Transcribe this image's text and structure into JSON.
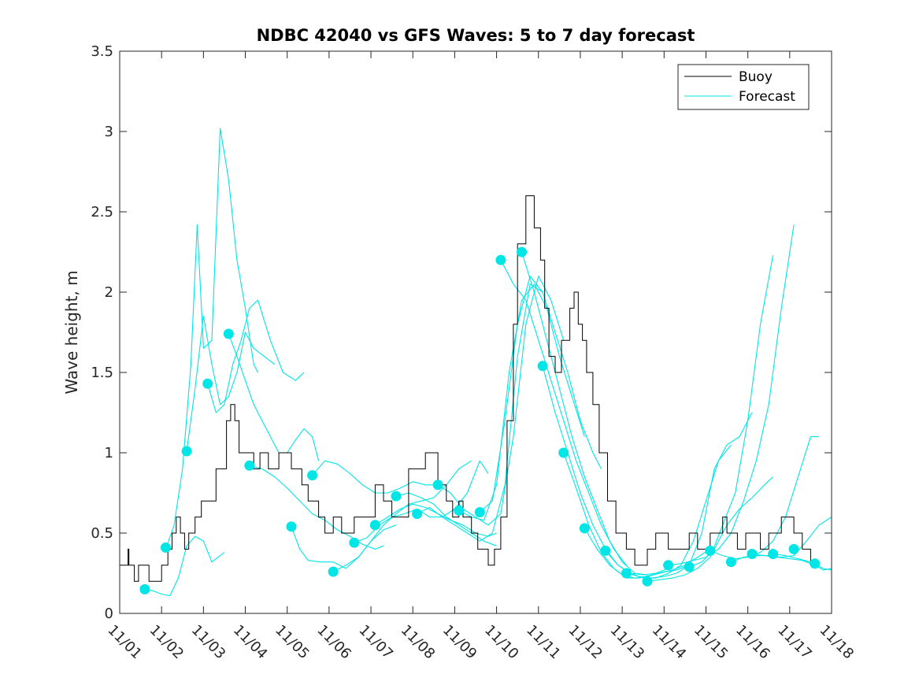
{
  "chart_data": {
    "type": "line",
    "title": "NDBC 42040 vs GFS Waves: 5 to 7 day forecast",
    "xlabel": "",
    "ylabel": "Wave height, m",
    "xlim": [
      0,
      17
    ],
    "ylim": [
      0,
      3.5
    ],
    "yticks": [
      0,
      0.5,
      1,
      1.5,
      2,
      2.5,
      3,
      3.5
    ],
    "ytick_labels": [
      "0",
      "0.5",
      "1",
      "1.5",
      "2",
      "2.5",
      "3",
      "3.5"
    ],
    "xtick_labels": [
      "11/01",
      "11/02",
      "11/03",
      "11/04",
      "11/05",
      "11/06",
      "11/07",
      "11/08",
      "11/09",
      "11/10",
      "11/11",
      "11/12",
      "11/13",
      "11/14",
      "11/15",
      "11/16",
      "11/17",
      "11/18"
    ],
    "grid": false,
    "legend": {
      "location": "top-right",
      "entries": [
        "Buoy",
        "Forecast"
      ]
    },
    "colors": {
      "buoy": "#000000",
      "forecast": "#00e5e5",
      "axes": "#262626"
    },
    "buoy": {
      "name": "Buoy",
      "x": [
        0,
        0.2,
        0.2,
        0.22,
        0.22,
        0.35,
        0.35,
        0.45,
        0.45,
        0.7,
        0.7,
        1.0,
        1.0,
        1.15,
        1.15,
        1.25,
        1.25,
        1.35,
        1.35,
        1.45,
        1.45,
        1.55,
        1.55,
        1.65,
        1.65,
        1.8,
        1.8,
        1.95,
        1.95,
        2.3,
        2.3,
        2.55,
        2.55,
        2.65,
        2.65,
        2.75,
        2.75,
        2.85,
        2.85,
        3.2,
        3.2,
        3.35,
        3.35,
        3.55,
        3.55,
        3.8,
        3.8,
        4.1,
        4.1,
        4.35,
        4.35,
        4.5,
        4.5,
        4.75,
        4.75,
        4.9,
        4.9,
        5.1,
        5.1,
        5.3,
        5.3,
        5.6,
        5.6,
        6.1,
        6.1,
        6.3,
        6.3,
        6.5,
        6.5,
        6.9,
        6.9,
        7.3,
        7.3,
        7.6,
        7.6,
        7.8,
        7.8,
        7.95,
        7.95,
        8.1,
        8.1,
        8.2,
        8.2,
        8.4,
        8.4,
        8.55,
        8.55,
        8.8,
        8.8,
        8.95,
        8.95,
        9.1,
        9.1,
        9.25,
        9.25,
        9.4,
        9.4,
        9.5,
        9.5,
        9.7,
        9.7,
        9.9,
        9.9,
        10.05,
        10.05,
        10.15,
        10.15,
        10.25,
        10.25,
        10.4,
        10.4,
        10.55,
        10.55,
        10.75,
        10.75,
        10.85,
        10.85,
        10.95,
        10.95,
        11.05,
        11.05,
        11.15,
        11.15,
        11.3,
        11.3,
        11.45,
        11.45,
        11.65,
        11.65,
        11.85,
        11.85,
        12.1,
        12.1,
        12.3,
        12.3,
        12.6,
        12.6,
        12.8,
        12.8,
        13.1,
        13.1,
        13.6,
        13.6,
        13.8,
        13.8,
        14.1,
        14.1,
        14.4,
        14.4,
        14.5,
        14.5,
        14.75,
        14.75,
        14.95,
        14.95,
        15.3,
        15.3,
        15.5,
        15.5,
        15.8,
        15.8,
        16.1,
        16.1,
        16.3,
        16.3,
        16.5,
        16.5,
        16.7
      ],
      "y": [
        0.3,
        0.3,
        0.4,
        0.4,
        0.3,
        0.3,
        0.2,
        0.2,
        0.3,
        0.3,
        0.2,
        0.2,
        0.3,
        0.3,
        0.4,
        0.4,
        0.5,
        0.5,
        0.6,
        0.6,
        0.5,
        0.5,
        0.4,
        0.4,
        0.5,
        0.5,
        0.6,
        0.6,
        0.7,
        0.7,
        0.9,
        0.9,
        1.2,
        1.2,
        1.3,
        1.3,
        1.2,
        1.2,
        1.0,
        1.0,
        0.9,
        0.9,
        1.0,
        1.0,
        0.9,
        0.9,
        1.0,
        1.0,
        0.9,
        0.9,
        0.8,
        0.8,
        0.7,
        0.7,
        0.6,
        0.6,
        0.5,
        0.5,
        0.6,
        0.6,
        0.5,
        0.5,
        0.6,
        0.6,
        0.8,
        0.8,
        0.7,
        0.7,
        0.6,
        0.6,
        0.9,
        0.9,
        1.0,
        1.0,
        0.8,
        0.8,
        0.7,
        0.7,
        0.6,
        0.6,
        0.7,
        0.7,
        0.6,
        0.6,
        0.5,
        0.5,
        0.4,
        0.4,
        0.3,
        0.3,
        0.4,
        0.4,
        0.6,
        0.6,
        1.2,
        1.2,
        1.8,
        1.8,
        2.3,
        2.3,
        2.6,
        2.6,
        2.4,
        2.4,
        2.2,
        2.2,
        1.9,
        1.9,
        1.6,
        1.6,
        1.5,
        1.5,
        1.7,
        1.7,
        1.9,
        1.9,
        2.0,
        2.0,
        1.8,
        1.8,
        1.7,
        1.7,
        1.5,
        1.5,
        1.3,
        1.3,
        1.0,
        1.0,
        0.7,
        0.7,
        0.5,
        0.5,
        0.4,
        0.4,
        0.3,
        0.3,
        0.4,
        0.4,
        0.5,
        0.5,
        0.4,
        0.4,
        0.5,
        0.5,
        0.4,
        0.4,
        0.5,
        0.5,
        0.6,
        0.6,
        0.5,
        0.5,
        0.4,
        0.4,
        0.5,
        0.5,
        0.4,
        0.4,
        0.5,
        0.5,
        0.6,
        0.6,
        0.5,
        0.5,
        0.4,
        0.4,
        0.3,
        0.3
      ]
    },
    "forecast_series": [
      {
        "name": "Forecast",
        "x": [
          0.6,
          0.8,
          1.0,
          1.2,
          1.4,
          1.6,
          1.8,
          2.0,
          2.2,
          2.5
        ],
        "y": [
          0.15,
          0.14,
          0.12,
          0.11,
          0.22,
          0.42,
          0.48,
          0.45,
          0.32,
          0.38
        ]
      },
      {
        "name": "Forecast",
        "x": [
          1.1,
          1.3,
          1.5,
          1.7,
          1.85,
          2.0,
          2.2,
          2.4,
          2.6,
          2.8,
          3.0,
          3.2,
          3.3
        ],
        "y": [
          0.4,
          0.55,
          0.9,
          1.55,
          2.42,
          1.65,
          1.7,
          3.02,
          2.7,
          2.2,
          1.9,
          1.55,
          1.5
        ]
      },
      {
        "name": "Forecast",
        "x": [
          1.6,
          1.8,
          2.0,
          2.2,
          2.4,
          2.6,
          2.8,
          3.0,
          3.2,
          3.45,
          3.7
        ],
        "y": [
          1.01,
          1.4,
          1.85,
          1.55,
          1.3,
          1.35,
          1.5,
          1.75,
          1.65,
          1.6,
          1.55
        ]
      },
      {
        "name": "Forecast",
        "x": [
          2.1,
          2.3,
          2.5,
          2.7,
          2.9,
          3.1,
          3.3,
          3.6,
          3.9,
          4.2,
          4.4
        ],
        "y": [
          1.43,
          1.25,
          1.3,
          1.55,
          1.7,
          1.9,
          1.95,
          1.7,
          1.5,
          1.45,
          1.5
        ]
      },
      {
        "name": "Forecast",
        "x": [
          2.6,
          2.8,
          3.0,
          3.2,
          3.4,
          3.6,
          3.8,
          4.0,
          4.2,
          4.4,
          4.6,
          4.75
        ],
        "y": [
          1.74,
          1.6,
          1.45,
          1.3,
          1.2,
          1.1,
          1.0,
          1.0,
          1.08,
          1.15,
          1.1,
          0.95
        ]
      },
      {
        "name": "Forecast",
        "x": [
          3.1,
          3.4,
          3.7,
          4.0,
          4.3,
          4.6,
          4.9,
          5.2,
          5.5,
          5.8,
          6.1,
          6.3
        ],
        "y": [
          0.92,
          0.9,
          0.85,
          0.78,
          0.7,
          0.62,
          0.58,
          0.52,
          0.48,
          0.43,
          0.4,
          0.42
        ]
      },
      {
        "name": "Forecast",
        "x": [
          4.1,
          4.3,
          4.5,
          4.8,
          5.1,
          5.4,
          5.7,
          6.0,
          6.3,
          6.6
        ],
        "y": [
          0.54,
          0.4,
          0.33,
          0.32,
          0.32,
          0.28,
          0.35,
          0.45,
          0.52,
          0.55
        ]
      },
      {
        "name": "Forecast",
        "x": [
          4.6,
          4.9,
          5.2,
          5.5,
          5.8,
          6.1,
          6.4,
          6.7,
          7.0,
          7.3,
          7.5
        ],
        "y": [
          0.86,
          0.95,
          0.93,
          0.87,
          0.8,
          0.75,
          0.75,
          0.78,
          0.82,
          0.8,
          0.8
        ]
      },
      {
        "name": "Forecast",
        "x": [
          5.1,
          5.4,
          5.7,
          6.0,
          6.3,
          6.6,
          6.9,
          7.2,
          7.5,
          7.8,
          8.1,
          8.4
        ],
        "y": [
          0.26,
          0.3,
          0.35,
          0.45,
          0.55,
          0.62,
          0.68,
          0.7,
          0.72,
          0.8,
          0.9,
          0.95
        ]
      },
      {
        "name": "Forecast",
        "x": [
          5.6,
          5.9,
          6.2,
          6.5,
          6.8,
          7.1,
          7.4,
          7.7,
          8.0,
          8.3,
          8.6,
          8.8
        ],
        "y": [
          0.44,
          0.47,
          0.55,
          0.6,
          0.62,
          0.65,
          0.6,
          0.6,
          0.65,
          0.75,
          0.95,
          0.87
        ]
      },
      {
        "name": "Forecast",
        "x": [
          6.1,
          6.4,
          6.7,
          7.0,
          7.3,
          7.6,
          7.9,
          8.2,
          8.5,
          8.8,
          9.0
        ],
        "y": [
          0.55,
          0.6,
          0.65,
          0.68,
          0.66,
          0.62,
          0.58,
          0.55,
          0.5,
          0.48,
          0.5
        ]
      },
      {
        "name": "Forecast",
        "x": [
          6.6,
          6.9,
          7.2,
          7.5,
          7.8,
          8.1,
          8.4,
          8.7,
          9.0
        ],
        "y": [
          0.73,
          0.75,
          0.72,
          0.68,
          0.6,
          0.55,
          0.5,
          0.45,
          0.42
        ]
      },
      {
        "name": "Forecast",
        "x": [
          7.1,
          7.4,
          7.7,
          8.0,
          8.3,
          8.6,
          8.9,
          9.2,
          9.5,
          9.8,
          10.1
        ],
        "y": [
          0.62,
          0.66,
          0.6,
          0.55,
          0.5,
          0.45,
          0.5,
          0.8,
          1.6,
          2.05,
          2.0
        ]
      },
      {
        "name": "Forecast",
        "x": [
          7.6,
          7.9,
          8.2,
          8.5,
          8.8,
          9.1,
          9.4,
          9.7,
          10.0,
          10.3,
          10.6
        ],
        "y": [
          0.8,
          0.75,
          0.65,
          0.6,
          0.55,
          0.62,
          1.1,
          1.8,
          2.1,
          1.95,
          1.7
        ]
      },
      {
        "name": "Forecast",
        "x": [
          8.1,
          8.4,
          8.7,
          9.0,
          9.3,
          9.6,
          9.9,
          10.2,
          10.5,
          10.8,
          11.1
        ],
        "y": [
          0.64,
          0.6,
          0.58,
          0.8,
          1.5,
          1.95,
          2.05,
          1.9,
          1.6,
          1.35,
          1.1
        ]
      },
      {
        "name": "Forecast",
        "x": [
          8.6,
          8.9,
          9.2,
          9.5,
          9.8,
          10.1,
          10.4,
          10.7,
          11.0,
          11.3,
          11.5
        ],
        "y": [
          0.63,
          0.7,
          1.2,
          1.8,
          2.1,
          2.0,
          1.75,
          1.5,
          1.2,
          1.0,
          0.9
        ]
      },
      {
        "name": "Forecast",
        "x": [
          9.1,
          9.4,
          9.7,
          10.0,
          10.3,
          10.6,
          10.9,
          11.2,
          11.5,
          11.8,
          12.1
        ],
        "y": [
          2.2,
          2.05,
          1.95,
          1.7,
          1.45,
          1.2,
          0.95,
          0.75,
          0.55,
          0.4,
          0.3
        ]
      },
      {
        "name": "Forecast",
        "x": [
          9.6,
          9.9,
          10.2,
          10.5,
          10.8,
          11.1,
          11.4,
          11.7,
          12.0,
          12.3,
          12.6
        ],
        "y": [
          2.25,
          2.0,
          1.7,
          1.4,
          1.1,
          0.85,
          0.65,
          0.45,
          0.32,
          0.25,
          0.24
        ]
      },
      {
        "name": "Forecast",
        "x": [
          10.1,
          10.4,
          10.7,
          11.0,
          11.3,
          11.6,
          11.9,
          12.2,
          12.5,
          12.8,
          13.1
        ],
        "y": [
          1.54,
          1.25,
          1.0,
          0.75,
          0.55,
          0.4,
          0.3,
          0.25,
          0.24,
          0.25,
          0.28
        ]
      },
      {
        "name": "Forecast",
        "x": [
          10.6,
          10.9,
          11.2,
          11.5,
          11.8,
          12.1,
          12.4,
          12.7,
          13.0,
          13.3,
          13.6
        ],
        "y": [
          1.0,
          0.78,
          0.55,
          0.38,
          0.28,
          0.22,
          0.22,
          0.24,
          0.26,
          0.27,
          0.3
        ]
      },
      {
        "name": "Forecast",
        "x": [
          11.1,
          11.4,
          11.7,
          12.0,
          12.3,
          12.6,
          12.9,
          13.2,
          13.5,
          13.8,
          14.1
        ],
        "y": [
          0.53,
          0.4,
          0.3,
          0.24,
          0.22,
          0.23,
          0.25,
          0.27,
          0.3,
          0.35,
          0.4
        ]
      },
      {
        "name": "Forecast",
        "x": [
          11.6,
          11.9,
          12.2,
          12.5,
          12.8,
          13.1,
          13.4,
          13.7,
          14.0,
          14.3,
          14.6
        ],
        "y": [
          0.39,
          0.3,
          0.25,
          0.22,
          0.22,
          0.25,
          0.3,
          0.45,
          0.7,
          0.95,
          1.05
        ]
      },
      {
        "name": "Forecast",
        "x": [
          12.1,
          12.4,
          12.7,
          13.0,
          13.3,
          13.6,
          13.9,
          14.2,
          14.5,
          14.8,
          15.1
        ],
        "y": [
          0.25,
          0.23,
          0.22,
          0.23,
          0.25,
          0.3,
          0.5,
          0.9,
          1.05,
          1.1,
          1.25
        ]
      },
      {
        "name": "Forecast",
        "x": [
          12.6,
          12.9,
          13.2,
          13.5,
          13.8,
          14.1,
          14.4,
          14.7,
          15.0,
          15.3,
          15.6
        ],
        "y": [
          0.2,
          0.21,
          0.22,
          0.24,
          0.28,
          0.35,
          0.55,
          0.75,
          1.2,
          1.8,
          2.23
        ]
      },
      {
        "name": "Forecast",
        "x": [
          13.1,
          13.4,
          13.7,
          14.0,
          14.3,
          14.6,
          14.9,
          15.2,
          15.5,
          15.8,
          16.1
        ],
        "y": [
          0.3,
          0.31,
          0.33,
          0.35,
          0.4,
          0.5,
          0.7,
          0.95,
          1.3,
          1.9,
          2.42
        ]
      },
      {
        "name": "Forecast",
        "x": [
          13.6,
          13.9,
          14.2,
          14.5,
          14.8,
          15.1,
          15.4,
          15.6
        ],
        "y": [
          0.29,
          0.32,
          0.4,
          0.55,
          0.65,
          0.72,
          0.8,
          0.85
        ]
      },
      {
        "name": "Forecast",
        "x": [
          14.1,
          14.4,
          14.7,
          15.0,
          15.3,
          15.6,
          15.9,
          16.2,
          16.5,
          16.7
        ],
        "y": [
          0.39,
          0.36,
          0.34,
          0.35,
          0.38,
          0.45,
          0.6,
          0.85,
          1.1,
          1.1
        ]
      },
      {
        "name": "Forecast",
        "x": [
          14.6,
          14.9,
          15.2,
          15.5,
          15.8,
          16.1,
          16.4,
          16.7,
          17.0
        ],
        "y": [
          0.32,
          0.35,
          0.36,
          0.36,
          0.35,
          0.36,
          0.45,
          0.55,
          0.6
        ]
      },
      {
        "name": "Forecast",
        "x": [
          15.1,
          15.4,
          15.7,
          16.0,
          16.3,
          16.6,
          16.8,
          17.0
        ],
        "y": [
          0.37,
          0.36,
          0.35,
          0.34,
          0.33,
          0.3,
          0.27,
          0.28
        ]
      },
      {
        "name": "Forecast",
        "x": [
          15.6,
          15.9,
          16.2,
          16.5,
          16.8,
          17.0
        ],
        "y": [
          0.37,
          0.36,
          0.34,
          0.32,
          0.28,
          0.27
        ]
      }
    ],
    "forecast_markers": {
      "x": [
        0.6,
        1.1,
        1.6,
        2.1,
        2.6,
        3.1,
        4.1,
        4.6,
        5.1,
        5.6,
        6.1,
        6.6,
        7.1,
        7.6,
        8.1,
        8.6,
        9.1,
        9.6,
        10.1,
        10.6,
        11.1,
        11.6,
        12.1,
        12.6,
        13.1,
        13.6,
        14.1,
        14.6,
        15.1,
        15.6,
        16.1,
        16.6
      ],
      "y": [
        0.15,
        0.41,
        1.01,
        1.43,
        1.74,
        0.92,
        0.54,
        0.86,
        0.26,
        0.44,
        0.55,
        0.73,
        0.62,
        0.8,
        0.64,
        0.63,
        2.2,
        2.25,
        1.54,
        1.0,
        0.53,
        0.39,
        0.25,
        0.2,
        0.3,
        0.29,
        0.39,
        0.32,
        0.37,
        0.37,
        0.4,
        0.31
      ]
    }
  }
}
